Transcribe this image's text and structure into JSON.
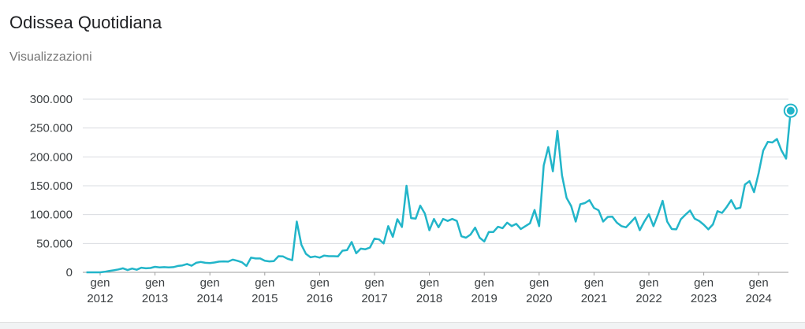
{
  "header": {
    "title": "Odissea Quotidiana",
    "subtitle": "Visualizzazioni"
  },
  "chart_data": {
    "type": "line",
    "title": "Odissea Quotidiana",
    "ylabel": "Visualizzazioni",
    "xlabel": "",
    "ylim": [
      0,
      300000
    ],
    "y_ticks": [
      0,
      50000,
      100000,
      150000,
      200000,
      250000,
      300000
    ],
    "y_tick_labels": [
      "0",
      "50.000",
      "100.000",
      "150.000",
      "200.000",
      "250.000",
      "300.000"
    ],
    "x_ticks": [
      {
        "month": "gen",
        "year": "2012"
      },
      {
        "month": "gen",
        "year": "2013"
      },
      {
        "month": "gen",
        "year": "2014"
      },
      {
        "month": "gen",
        "year": "2015"
      },
      {
        "month": "gen",
        "year": "2016"
      },
      {
        "month": "gen",
        "year": "2017"
      },
      {
        "month": "gen",
        "year": "2018"
      },
      {
        "month": "gen",
        "year": "2019"
      },
      {
        "month": "gen",
        "year": "2020"
      },
      {
        "month": "gen",
        "year": "2021"
      },
      {
        "month": "gen",
        "year": "2022"
      },
      {
        "month": "gen",
        "year": "2023"
      },
      {
        "month": "gen",
        "year": "2024"
      }
    ],
    "start": "2011-10",
    "grid": true,
    "color": "#22b5c9",
    "highlight_last_point": true,
    "series": [
      {
        "values": [
          0,
          0,
          0,
          0,
          1000,
          2500,
          3500,
          5000,
          7000,
          4000,
          6500,
          4500,
          8000,
          7000,
          7500,
          9500,
          8500,
          9000,
          8500,
          9000,
          11000,
          12000,
          14500,
          11500,
          16500,
          18000,
          16500,
          16000,
          17000,
          18500,
          19000,
          18500,
          22000,
          20000,
          17500,
          11000,
          25500,
          24000,
          24000,
          20000,
          19000,
          19500,
          28000,
          27500,
          23500,
          21000,
          88000,
          48000,
          32000,
          26000,
          27500,
          25500,
          29000,
          28000,
          28000,
          27500,
          37500,
          38500,
          52500,
          33000,
          41000,
          40000,
          43000,
          58500,
          57000,
          50000,
          80000,
          61500,
          92000,
          78500,
          150000,
          94000,
          93000,
          115500,
          102000,
          73000,
          92500,
          78000,
          92500,
          89000,
          92500,
          89000,
          62500,
          60000,
          65500,
          77500,
          60000,
          53500,
          70000,
          70000,
          79000,
          76500,
          86000,
          80000,
          84000,
          75000,
          80000,
          85000,
          108000,
          80000,
          185000,
          217000,
          175000,
          245000,
          168000,
          129000,
          115000,
          88000,
          118000,
          120000,
          125000,
          111500,
          107500,
          88000,
          96000,
          96500,
          86000,
          80000,
          78000,
          86500,
          95000,
          73000,
          88000,
          100500,
          80000,
          100500,
          124000,
          88000,
          75000,
          74500,
          92000,
          100000,
          107000,
          93000,
          89000,
          82500,
          74500,
          83000,
          106000,
          103000,
          113000,
          125000,
          110000,
          112000,
          152000,
          158000,
          139000,
          172000,
          211000,
          226000,
          225000,
          231000,
          211000,
          197000,
          280000
        ]
      }
    ]
  }
}
